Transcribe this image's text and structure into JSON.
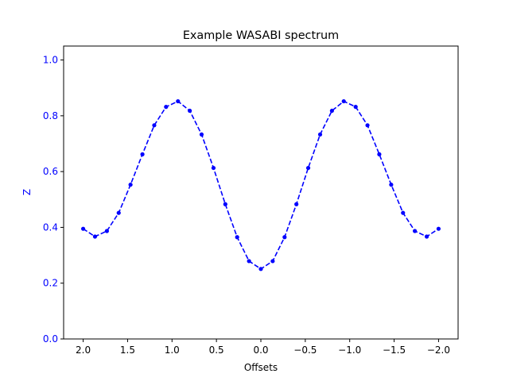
{
  "chart_data": {
    "type": "line",
    "title": "Example WASABI spectrum",
    "xlabel": "Offsets",
    "ylabel": "Z",
    "xlim": [
      2.22,
      -2.22
    ],
    "ylim": [
      0.0,
      1.05
    ],
    "x_inverted": true,
    "grid": false,
    "xticks": [
      2.0,
      1.5,
      1.0,
      0.5,
      0.0,
      -0.5,
      -1.0,
      -1.5,
      -2.0
    ],
    "xtick_labels": [
      "2.0",
      "1.5",
      "1.0",
      "0.5",
      "0.0",
      "−0.5",
      "−1.0",
      "−1.5",
      "−2.0"
    ],
    "yticks": [
      0.0,
      0.2,
      0.4,
      0.6,
      0.8,
      1.0
    ],
    "ytick_labels": [
      "0.0",
      "0.2",
      "0.4",
      "0.6",
      "0.8",
      "1.0"
    ],
    "series": [
      {
        "color": "#0000ff",
        "line_style": "dashed",
        "marker": "circle",
        "x": [
          2.0,
          1.867,
          1.733,
          1.6,
          1.467,
          1.333,
          1.2,
          1.067,
          0.933,
          0.8,
          0.667,
          0.533,
          0.4,
          0.267,
          0.133,
          0.0,
          -0.133,
          -0.267,
          -0.4,
          -0.533,
          -0.667,
          -0.8,
          -0.933,
          -1.067,
          -1.2,
          -1.333,
          -1.467,
          -1.6,
          -1.733,
          -1.867,
          -2.0
        ],
        "y": [
          0.395,
          0.367,
          0.387,
          0.452,
          0.553,
          0.662,
          0.766,
          0.832,
          0.852,
          0.818,
          0.733,
          0.613,
          0.483,
          0.365,
          0.279,
          0.251,
          0.279,
          0.365,
          0.483,
          0.613,
          0.733,
          0.818,
          0.852,
          0.832,
          0.766,
          0.662,
          0.553,
          0.452,
          0.387,
          0.367,
          0.395
        ]
      }
    ]
  },
  "colors": {
    "axis_tick_color_y": "#0000ff",
    "axis_color": "#000000",
    "background": "#ffffff"
  }
}
